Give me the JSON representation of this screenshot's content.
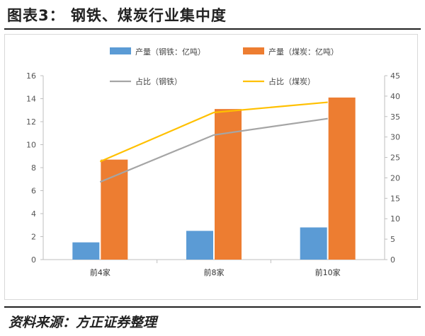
{
  "figure": {
    "title": "图表3：  钢铁、煤炭行业集中度",
    "source": "资料来源：方正证券整理"
  },
  "chart_data": {
    "type": "bar",
    "categories": [
      "前4家",
      "前8家",
      "前10家"
    ],
    "series": [
      {
        "name": "产量（钢铁：亿吨）",
        "kind": "bar",
        "axis": "left",
        "color": "#5B9BD5",
        "values": [
          1.5,
          2.5,
          2.8
        ]
      },
      {
        "name": "产量（煤炭：亿吨）",
        "kind": "bar",
        "axis": "left",
        "color": "#ED7D31",
        "values": [
          8.7,
          13.1,
          14.1
        ]
      },
      {
        "name": "占比（钢铁）",
        "kind": "line",
        "axis": "right",
        "color": "#A5A5A5",
        "values": [
          19,
          30.5,
          34.5
        ]
      },
      {
        "name": "占比（煤炭）",
        "kind": "line",
        "axis": "right",
        "color": "#FFC000",
        "values": [
          24,
          36,
          38.5
        ]
      }
    ],
    "y_left": {
      "min": 0,
      "max": 16,
      "ticks": [
        0,
        2,
        4,
        6,
        8,
        10,
        12,
        14,
        16
      ]
    },
    "y_right": {
      "min": 0,
      "max": 45,
      "ticks": [
        0,
        5,
        10,
        15,
        20,
        25,
        30,
        35,
        40,
        45
      ]
    },
    "grid": false,
    "legend": "top"
  }
}
